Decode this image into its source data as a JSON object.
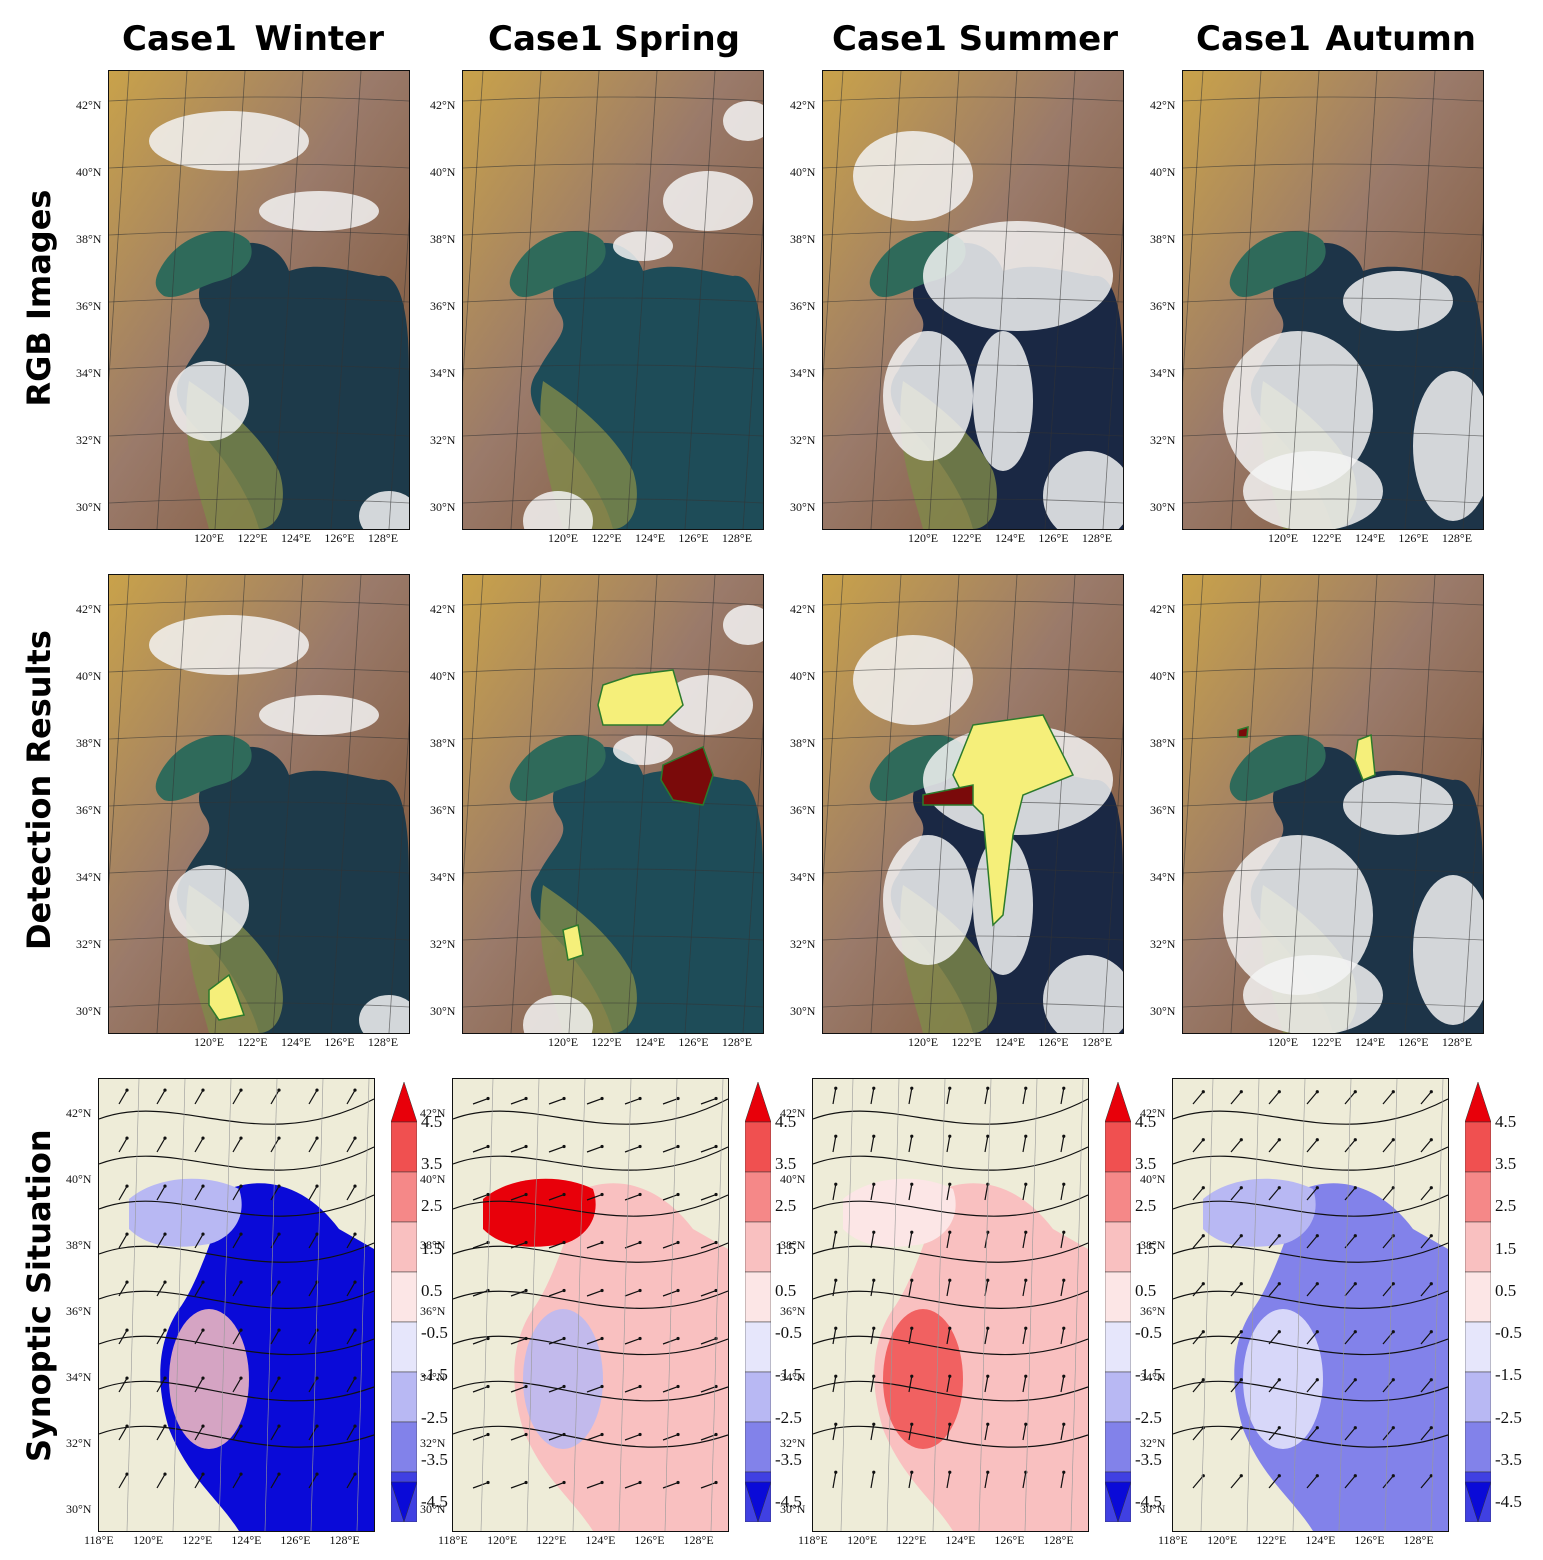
{
  "columns": [
    {
      "case": "Case1",
      "season": "Winter"
    },
    {
      "case": "Case1",
      "season": "Spring"
    },
    {
      "case": "Case1",
      "season": "Summer"
    },
    {
      "case": "Case1",
      "season": "Autumn"
    }
  ],
  "rows": {
    "rgb": "RGB Images",
    "detection": "Detection Results",
    "synoptic": "Synoptic Situation"
  },
  "lat_ticks": [
    "42°N",
    "40°N",
    "38°N",
    "36°N",
    "34°N",
    "32°N",
    "30°N"
  ],
  "lon_ticks_rgb": [
    "120°E",
    "122°E",
    "124°E",
    "126°E",
    "128°E"
  ],
  "lon_ticks_syn": [
    "118°E",
    "120°E",
    "122°E",
    "124°E",
    "126°E",
    "128°E"
  ],
  "colorbar": {
    "labels": [
      "4.5",
      "3.5",
      "2.5",
      "1.5",
      "0.5",
      "-0.5",
      "-1.5",
      "-2.5",
      "-3.5",
      "-4.5"
    ],
    "colors": [
      "#e8000a",
      "#f05050",
      "#f58888",
      "#f9c0c0",
      "#fce6e6",
      "#e6e6fb",
      "#b8b8f3",
      "#8282ea",
      "#4040e2",
      "#0a0ad8"
    ]
  }
}
